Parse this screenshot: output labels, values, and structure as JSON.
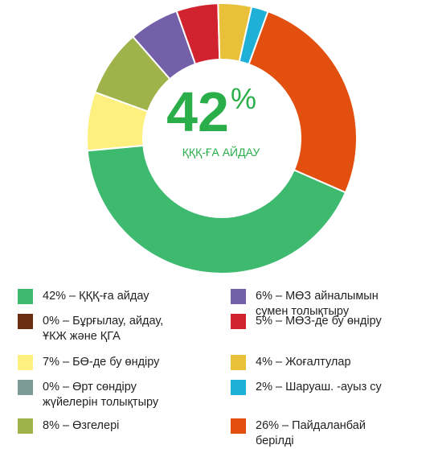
{
  "chart_data": {
    "type": "pie",
    "donut": true,
    "center": {
      "value": "42",
      "unit": "%",
      "label": "ҚҚҚ-ҒА АЙДАУ"
    },
    "center_color": "#2aae4a",
    "slices": [
      {
        "label": "ҚҚҚ-ға айдау",
        "value": 42,
        "color": "#3dba6e"
      },
      {
        "label": "Бұрғылау, айдау, ҰКЖ және ҚГА",
        "value": 0,
        "color": "#6b2d12"
      },
      {
        "label": "БӨ-де бу өндіру",
        "value": 7,
        "color": "#fdf07f"
      },
      {
        "label": "Өрт сөндіру жүйелерін толықтыру",
        "value": 0,
        "color": "#7d9a96"
      },
      {
        "label": "Өзгелері",
        "value": 8,
        "color": "#9fb34a"
      },
      {
        "label": "МӨЗ айналымын сумен толықтыру",
        "value": 6,
        "color": "#7460a8"
      },
      {
        "label": "МӨЗ-де бу өндіру",
        "value": 5,
        "color": "#d1232f"
      },
      {
        "label": "Жоғалтулар",
        "value": 4,
        "color": "#e8c03a"
      },
      {
        "label": "Шаруаш. -ауыз су",
        "value": 2,
        "color": "#1fb0d8"
      },
      {
        "label": "Пайдаланбай берілді",
        "value": 26,
        "color": "#e24f0e"
      }
    ]
  },
  "legend": [
    {
      "text": "42% – ҚҚҚ-ға айдау",
      "color": "#3dba6e"
    },
    {
      "text": "0% – Бұрғылау, айдау,\nҰКЖ және ҚГА",
      "color": "#6b2d12"
    },
    {
      "text": "7% – БӨ-де бу өндіру",
      "color": "#fdf07f"
    },
    {
      "text": "0% – Өрт сөндіру\nжүйелерін толықтыру",
      "color": "#7d9a96"
    },
    {
      "text": "8% – Өзгелері",
      "color": "#9fb34a"
    },
    {
      "text": "6% – МӨЗ айналымын\nсумен толықтыру",
      "color": "#7460a8"
    },
    {
      "text": "5% – МӨЗ-де бу өндіру",
      "color": "#d1232f"
    },
    {
      "text": "4% – Жоғалтулар",
      "color": "#e8c03a"
    },
    {
      "text": "2% – Шаруаш. -ауыз су",
      "color": "#1fb0d8"
    },
    {
      "text": "26% – Пайдаланбай\nберілді",
      "color": "#e24f0e"
    }
  ]
}
